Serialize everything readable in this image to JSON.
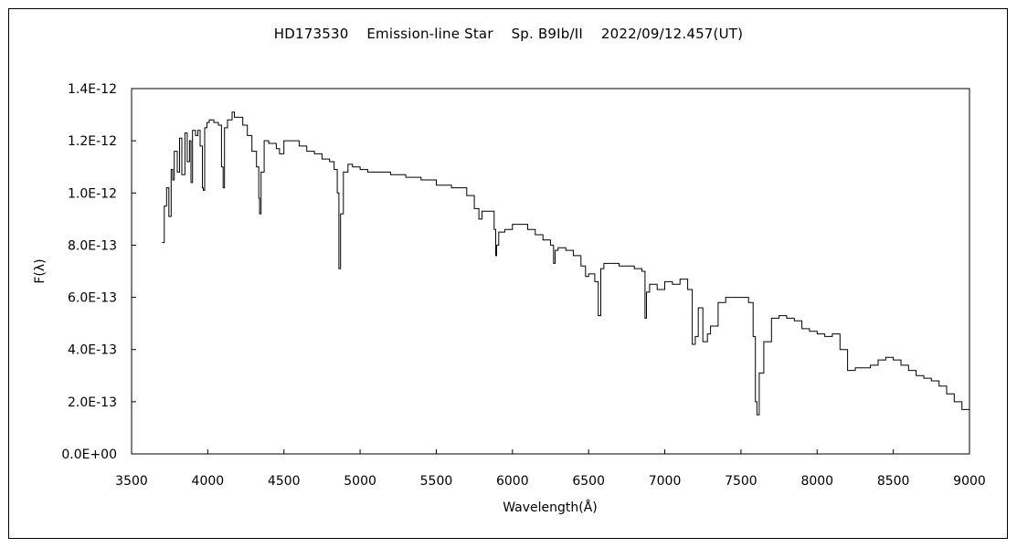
{
  "chart_data": {
    "type": "line",
    "title": "HD173530    Emission-line Star    Sp. B9Ib/II    2022/09/12.457(UT)",
    "xlabel": "Wavelength(Å)",
    "ylabel": "F(λ)",
    "xlim": [
      3500,
      9000
    ],
    "ylim": [
      0,
      1.4e-12
    ],
    "xticks": [
      3500,
      4000,
      4500,
      5000,
      5500,
      6000,
      6500,
      7000,
      7500,
      8000,
      8500,
      9000
    ],
    "xtick_labels": [
      "3500",
      "4000",
      "4500",
      "5000",
      "5500",
      "6000",
      "6500",
      "7000",
      "7500",
      "8000",
      "8500",
      "9000"
    ],
    "yticks": [
      0,
      2e-13,
      4e-13,
      6e-13,
      8e-13,
      1e-12,
      1.2e-12,
      1.4e-12
    ],
    "ytick_labels": [
      "0.0E+00",
      "2.0E-13",
      "4.0E-13",
      "6.0E-13",
      "8.0E-13",
      "1.0E-12",
      "1.2E-12",
      "1.4E-12"
    ],
    "grid": false,
    "legend": "none",
    "series": [
      {
        "x": [
          3700,
          3715,
          3730,
          3745,
          3760,
          3770,
          3780,
          3800,
          3815,
          3830,
          3850,
          3865,
          3880,
          3890,
          3900,
          3920,
          3935,
          3950,
          3965,
          3970,
          3980,
          3995,
          4010,
          4040,
          4070,
          4090,
          4101,
          4110,
          4130,
          4160,
          4175,
          4200,
          4230,
          4260,
          4290,
          4320,
          4335,
          4340,
          4350,
          4370,
          4400,
          4450,
          4471,
          4500,
          4550,
          4600,
          4650,
          4700,
          4750,
          4800,
          4830,
          4850,
          4861,
          4872,
          4890,
          4920,
          4950,
          5000,
          5050,
          5100,
          5200,
          5300,
          5400,
          5500,
          5600,
          5700,
          5750,
          5780,
          5800,
          5850,
          5880,
          5890,
          5896,
          5910,
          5950,
          6000,
          6050,
          6100,
          6150,
          6200,
          6250,
          6270,
          6280,
          6300,
          6350,
          6400,
          6450,
          6480,
          6500,
          6540,
          6563,
          6580,
          6600,
          6650,
          6700,
          6750,
          6800,
          6850,
          6870,
          6880,
          6900,
          6950,
          7000,
          7050,
          7100,
          7150,
          7180,
          7200,
          7220,
          7250,
          7280,
          7300,
          7350,
          7400,
          7450,
          7500,
          7550,
          7580,
          7595,
          7605,
          7620,
          7650,
          7700,
          7750,
          7800,
          7850,
          7900,
          7950,
          8000,
          8050,
          8100,
          8150,
          8200,
          8250,
          8300,
          8350,
          8400,
          8450,
          8500,
          8550,
          8600,
          8650,
          8700,
          8750,
          8800,
          8850,
          8900,
          8950,
          9000
        ],
        "y": [
          8.1e-13,
          9.5e-13,
          1.02e-12,
          9.1e-13,
          1.09e-12,
          1.05e-12,
          1.16e-12,
          1.08e-12,
          1.21e-12,
          1.07e-12,
          1.23e-12,
          1.12e-12,
          1.2e-12,
          1.04e-12,
          1.24e-12,
          1.22e-12,
          1.24e-12,
          1.18e-12,
          1.02e-12,
          1.01e-12,
          1.25e-12,
          1.27e-12,
          1.28e-12,
          1.27e-12,
          1.26e-12,
          1.1e-12,
          1.02e-12,
          1.25e-12,
          1.28e-12,
          1.31e-12,
          1.29e-12,
          1.29e-12,
          1.26e-12,
          1.22e-12,
          1.16e-12,
          1.1e-12,
          9.8e-13,
          9.2e-13,
          1.08e-12,
          1.2e-12,
          1.19e-12,
          1.17e-12,
          1.15e-12,
          1.2e-12,
          1.2e-12,
          1.18e-12,
          1.16e-12,
          1.15e-12,
          1.13e-12,
          1.12e-12,
          1.09e-12,
          1e-12,
          7.1e-13,
          9.2e-13,
          1.08e-12,
          1.11e-12,
          1.1e-12,
          1.09e-12,
          1.08e-12,
          1.08e-12,
          1.07e-12,
          1.06e-12,
          1.05e-12,
          1.03e-12,
          1.02e-12,
          9.9e-13,
          9.4e-13,
          9e-13,
          9.3e-13,
          9.3e-13,
          8.6e-13,
          7.6e-13,
          8e-13,
          8.5e-13,
          8.6e-13,
          8.8e-13,
          8.8e-13,
          8.6e-13,
          8.4e-13,
          8.2e-13,
          8e-13,
          7.3e-13,
          7.8e-13,
          7.9e-13,
          7.8e-13,
          7.6e-13,
          7.2e-13,
          6.8e-13,
          6.9e-13,
          6.6e-13,
          5.3e-13,
          7.1e-13,
          7.3e-13,
          7.3e-13,
          7.2e-13,
          7.2e-13,
          7.1e-13,
          7e-13,
          5.2e-13,
          6.2e-13,
          6.5e-13,
          6.3e-13,
          6.6e-13,
          6.5e-13,
          6.7e-13,
          6.3e-13,
          4.2e-13,
          4.5e-13,
          5.6e-13,
          4.3e-13,
          4.6e-13,
          4.9e-13,
          5.8e-13,
          6e-13,
          6e-13,
          6e-13,
          5.8e-13,
          4.5e-13,
          2e-13,
          1.5e-13,
          3.1e-13,
          4.3e-13,
          5.2e-13,
          5.3e-13,
          5.2e-13,
          5.1e-13,
          4.8e-13,
          4.7e-13,
          4.6e-13,
          4.5e-13,
          4.6e-13,
          4e-13,
          3.2e-13,
          3.3e-13,
          3.3e-13,
          3.4e-13,
          3.6e-13,
          3.7e-13,
          3.6e-13,
          3.4e-13,
          3.2e-13,
          3e-13,
          2.9e-13,
          2.8e-13,
          2.6e-13,
          2.3e-13,
          2e-13,
          1.7e-13,
          1.3e-13
        ]
      }
    ]
  }
}
